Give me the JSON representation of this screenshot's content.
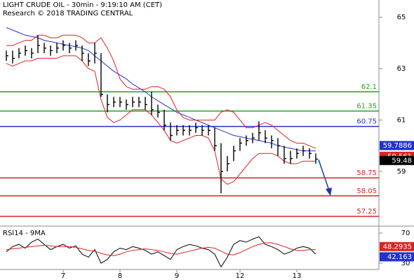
{
  "chart_data": {
    "type": "hlc",
    "title": "LIGHT CRUDE OIL - 30min - 9:19:10 AM (CET)",
    "subtitle": "Research © 2018 TRADING CENTRAL",
    "xlim": [
      -1,
      59
    ],
    "xticks": [
      {
        "value": 9,
        "label": "7"
      },
      {
        "value": 18,
        "label": "8"
      },
      {
        "value": 27,
        "label": "9"
      },
      {
        "value": 37,
        "label": "12"
      },
      {
        "value": 46,
        "label": "13"
      }
    ],
    "ylim": [
      56.9,
      65.67
    ],
    "yticks": [
      59,
      61,
      63,
      65
    ],
    "high": [
      63.7,
      63.7,
      63.8,
      63.9,
      63.8,
      64.3,
      64.0,
      63.9,
      64.0,
      64.1,
      64.0,
      64.1,
      63.9,
      63.6,
      64.0,
      63.6,
      62.0,
      61.9,
      61.9,
      61.8,
      61.9,
      61.9,
      61.9,
      62.1,
      61.6,
      61.4,
      60.9,
      60.8,
      60.8,
      60.8,
      60.9,
      60.8,
      60.8,
      60.7,
      60.1,
      59.6,
      60.0,
      60.3,
      60.4,
      60.5,
      60.95,
      60.6,
      60.4,
      60.3,
      60.0,
      59.8,
      59.9,
      60.0,
      59.9,
      59.7
    ],
    "low": [
      63.3,
      63.2,
      63.4,
      63.5,
      63.4,
      63.6,
      63.6,
      63.5,
      63.6,
      63.7,
      63.6,
      63.7,
      63.3,
      63.1,
      63.2,
      61.9,
      61.3,
      61.5,
      61.5,
      61.4,
      61.5,
      61.5,
      61.4,
      61.2,
      61.1,
      60.6,
      60.2,
      60.4,
      60.4,
      60.4,
      60.5,
      60.4,
      60.4,
      59.8,
      58.15,
      59.0,
      59.4,
      59.8,
      60.0,
      60.1,
      60.2,
      60.1,
      59.9,
      59.6,
      59.3,
      59.3,
      59.5,
      59.6,
      59.5,
      59.3
    ],
    "close": [
      63.5,
      63.4,
      63.6,
      63.7,
      63.6,
      63.9,
      63.8,
      63.7,
      63.8,
      63.9,
      63.8,
      63.9,
      63.6,
      63.3,
      63.6,
      62.0,
      61.6,
      61.7,
      61.7,
      61.6,
      61.7,
      61.7,
      61.6,
      61.4,
      61.3,
      60.8,
      60.4,
      60.6,
      60.6,
      60.6,
      60.7,
      60.6,
      60.6,
      60.0,
      59.0,
      59.3,
      59.8,
      60.1,
      60.2,
      60.3,
      60.5,
      60.3,
      60.2,
      60.0,
      59.5,
      59.5,
      59.7,
      59.8,
      59.7,
      59.48
    ],
    "series": [
      {
        "color": "#2233cc",
        "values": [
          64.6,
          64.5,
          64.4,
          64.3,
          64.25,
          64.2,
          64.1,
          64.05,
          64.0,
          63.95,
          63.9,
          63.85,
          63.8,
          63.7,
          63.5,
          63.3,
          63.1,
          62.9,
          62.75,
          62.6,
          62.4,
          62.25,
          62.1,
          61.9,
          61.75,
          61.6,
          61.45,
          61.3,
          61.2,
          61.1,
          61.0,
          60.9,
          60.8,
          60.7,
          60.6,
          60.5,
          60.4,
          60.35,
          60.3,
          60.25,
          60.2,
          60.15,
          60.1,
          60.0,
          59.95,
          59.9,
          59.85,
          59.8,
          59.8,
          59.8
        ]
      },
      {
        "color": "#dd2222",
        "values": [
          63.9,
          63.9,
          64.0,
          64.1,
          64.1,
          64.3,
          64.3,
          64.2,
          64.2,
          64.3,
          64.3,
          64.3,
          64.2,
          64.0,
          64.0,
          64.2,
          63.8,
          63.3,
          62.6,
          62.3,
          62.2,
          62.2,
          62.2,
          62.3,
          62.3,
          62.2,
          61.9,
          61.4,
          61.1,
          61.0,
          61.0,
          61.0,
          61.0,
          61.0,
          61.3,
          61.4,
          61.3,
          61.0,
          60.7,
          60.7,
          60.8,
          60.9,
          60.8,
          60.6,
          60.4,
          60.2,
          60.1,
          60.1,
          60.0,
          59.9
        ]
      },
      {
        "color": "#dd2222",
        "values": [
          63.2,
          63.1,
          63.2,
          63.3,
          63.3,
          63.4,
          63.4,
          63.4,
          63.4,
          63.5,
          63.5,
          63.5,
          63.3,
          63.0,
          62.9,
          61.8,
          61.1,
          60.9,
          61.0,
          61.2,
          61.4,
          61.4,
          61.4,
          61.2,
          60.9,
          60.6,
          60.2,
          60.1,
          60.2,
          60.3,
          60.4,
          60.4,
          60.3,
          59.8,
          58.7,
          58.5,
          58.6,
          58.9,
          59.2,
          59.5,
          59.7,
          59.7,
          59.7,
          59.6,
          59.4,
          59.3,
          59.3,
          59.4,
          59.4,
          59.4
        ]
      }
    ],
    "levels": [
      {
        "value": 62.1,
        "color": "#22a022"
      },
      {
        "value": 61.35,
        "color": "#22a022"
      },
      {
        "value": 60.75,
        "color": "#2233cc"
      },
      {
        "value": 58.75,
        "color": "#dd2222"
      },
      {
        "value": 58.05,
        "color": "#dd2222"
      },
      {
        "value": 57.25,
        "color": "#dd2222"
      }
    ],
    "markers": [
      {
        "value": 59.7886,
        "color": "#2233cc"
      },
      {
        "value": 59.561,
        "color": "#dd2222"
      },
      {
        "value": 59.48,
        "color": "#000000"
      }
    ],
    "rsi": {
      "title": "RSI14 - 9MA",
      "ylim": [
        21.6,
        77.4
      ],
      "yticks": [
        30,
        70
      ],
      "series": [
        {
          "color": "#000000",
          "values": [
            45,
            52,
            55,
            50,
            58,
            62,
            55,
            48,
            52,
            55,
            50,
            53,
            42,
            38,
            48,
            30,
            35,
            45,
            50,
            48,
            52,
            50,
            47,
            42,
            45,
            40,
            35,
            48,
            52,
            55,
            53,
            50,
            48,
            42,
            25,
            38,
            55,
            60,
            58,
            62,
            65,
            55,
            52,
            48,
            42,
            45,
            50,
            52,
            50,
            42
          ]
        },
        {
          "color": "#dd2222",
          "values": [
            48,
            49,
            50,
            51,
            52,
            53,
            54,
            53,
            52,
            52,
            52,
            51,
            49,
            47,
            46,
            43,
            41,
            40,
            42,
            45,
            47,
            48,
            49,
            48,
            47,
            45,
            43,
            42,
            44,
            46,
            48,
            50,
            51,
            50,
            46,
            42,
            41,
            44,
            48,
            52,
            55,
            57,
            57,
            55,
            52,
            49,
            47,
            47,
            48,
            48
          ]
        }
      ],
      "markers": [
        {
          "value": 48.2935,
          "color": "#dd2222"
        },
        {
          "value": 42.163,
          "color": "#2233cc"
        }
      ]
    }
  }
}
